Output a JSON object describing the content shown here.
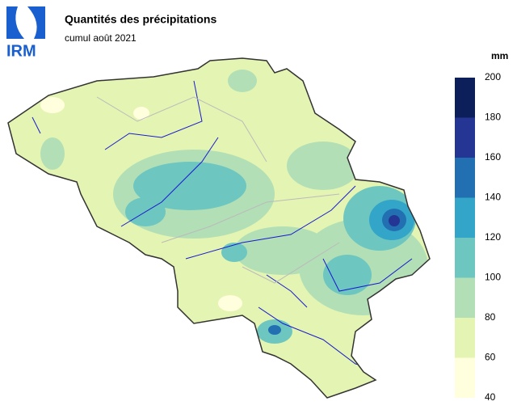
{
  "header": {
    "logo": "IRM",
    "title": "Quantités des précipitations",
    "subtitle": "cumul août 2021"
  },
  "legend": {
    "unit": "mm",
    "ticks": [
      40,
      60,
      80,
      100,
      120,
      140,
      160,
      180,
      200
    ],
    "colors": [
      "#ffffdd",
      "#e4f4b2",
      "#b2dfb6",
      "#6dc6bf",
      "#33a5c9",
      "#2270b2",
      "#253594",
      "#0c1f5b"
    ]
  }
}
